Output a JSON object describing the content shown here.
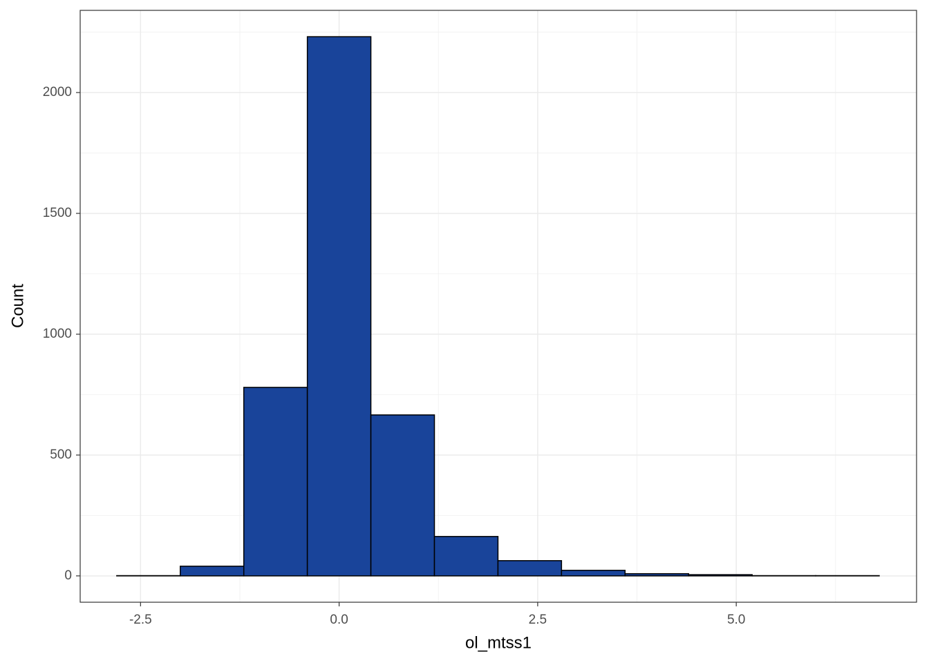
{
  "chart_data": {
    "type": "histogram",
    "x_label": "ol_mtss1",
    "y_label": "Count",
    "bins": [
      -2.8,
      -2.0,
      -1.2,
      -0.4,
      0.4,
      1.2,
      2.0,
      2.8,
      3.6,
      4.4,
      5.2,
      6.0,
      6.8
    ],
    "counts": [
      1,
      40,
      780,
      2231,
      666,
      163,
      63,
      23,
      9,
      5,
      1,
      1
    ],
    "color": "#19449a",
    "edge_color": "#000000",
    "xlim": [
      -3.26,
      7.27
    ],
    "ylim": [
      -109,
      2340
    ],
    "xticks": [
      -2.5,
      {
        "value": 0,
        "label": "0.0"
      },
      2.5,
      {
        "value": 5,
        "label": "5.0"
      }
    ],
    "yticks": [
      0,
      500,
      1000,
      1500,
      2000
    ],
    "x_minor_grid": [
      -1.25,
      1.25,
      3.75,
      6.25
    ],
    "y_minor_grid": [
      250,
      750,
      1250,
      1750,
      2250
    ],
    "grid": true
  }
}
